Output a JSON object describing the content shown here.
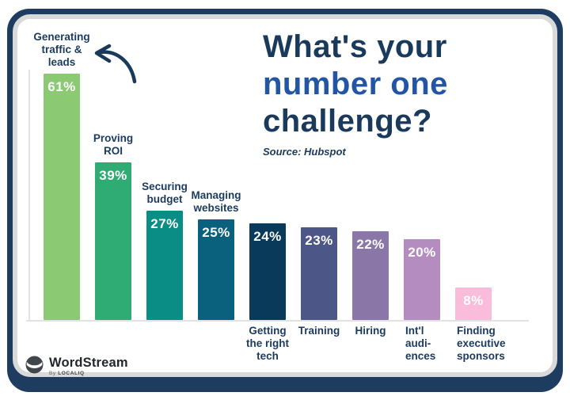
{
  "frame": {
    "outer_color": "#1D3C5F",
    "inner_border_color": "#D9D9D9",
    "card_background": "#FFFFFF"
  },
  "title": {
    "lines": [
      {
        "text": "What's your",
        "color": "#1A3A5C"
      },
      {
        "text": "number one",
        "color": "#2355A4"
      },
      {
        "text": "challenge?",
        "color": "#1A3A5C"
      }
    ],
    "source": "Source: Hubspot"
  },
  "annotation": {
    "arrow_color": "#1A3A5C",
    "arrow_points_to": "Generating traffic & leads"
  },
  "logo": {
    "brand": "WordStream",
    "byline_prefix": "By",
    "byline_brand": "LOCALIQ"
  },
  "chart_data": {
    "type": "bar",
    "title": "What's your number one challenge?",
    "source": "Source: Hubspot",
    "unit": "%",
    "ylim": [
      0,
      65
    ],
    "grid": false,
    "legend": "none",
    "categories": [
      "Generating traffic & leads",
      "Proving ROI",
      "Securing budget",
      "Managing websites",
      "Getting the right tech",
      "Training",
      "Hiring",
      "Int'l audiences",
      "Finding executive sponsors"
    ],
    "values": [
      61,
      39,
      27,
      25,
      24,
      23,
      22,
      20,
      8
    ],
    "text_color": "#1B3A5E",
    "value_label_color": "#FFFFFF",
    "bars": [
      {
        "label_lines": [
          "Generating",
          "traffic &",
          "leads"
        ],
        "value": 61,
        "color": "#8BC973",
        "label_position": "above",
        "align": "center"
      },
      {
        "label_lines": [
          "Proving",
          "ROI"
        ],
        "value": 39,
        "color": "#2FAC74",
        "label_position": "above",
        "align": "center"
      },
      {
        "label_lines": [
          "Securing",
          "budget"
        ],
        "value": 27,
        "color": "#0A8D84",
        "label_position": "above",
        "align": "center"
      },
      {
        "label_lines": [
          "Managing",
          "websites"
        ],
        "value": 25,
        "color": "#09617E",
        "label_position": "above",
        "align": "center"
      },
      {
        "label_lines": [
          "Getting",
          "the right",
          "tech"
        ],
        "value": 24,
        "color": "#093A5A",
        "label_position": "below",
        "align": "center"
      },
      {
        "label_lines": [
          "Training"
        ],
        "value": 23,
        "color": "#4C5687",
        "label_position": "below",
        "align": "center"
      },
      {
        "label_lines": [
          "Hiring"
        ],
        "value": 22,
        "color": "#8A77A8",
        "label_position": "below",
        "align": "center"
      },
      {
        "label_lines": [
          "Int'l",
          "audi-",
          "ences"
        ],
        "value": 20,
        "color": "#B48CC0",
        "label_position": "below",
        "align": "left"
      },
      {
        "label_lines": [
          "Finding",
          "executive",
          "sponsors"
        ],
        "value": 8,
        "color": "#F9BCDB",
        "label_position": "below",
        "align": "left"
      }
    ]
  }
}
